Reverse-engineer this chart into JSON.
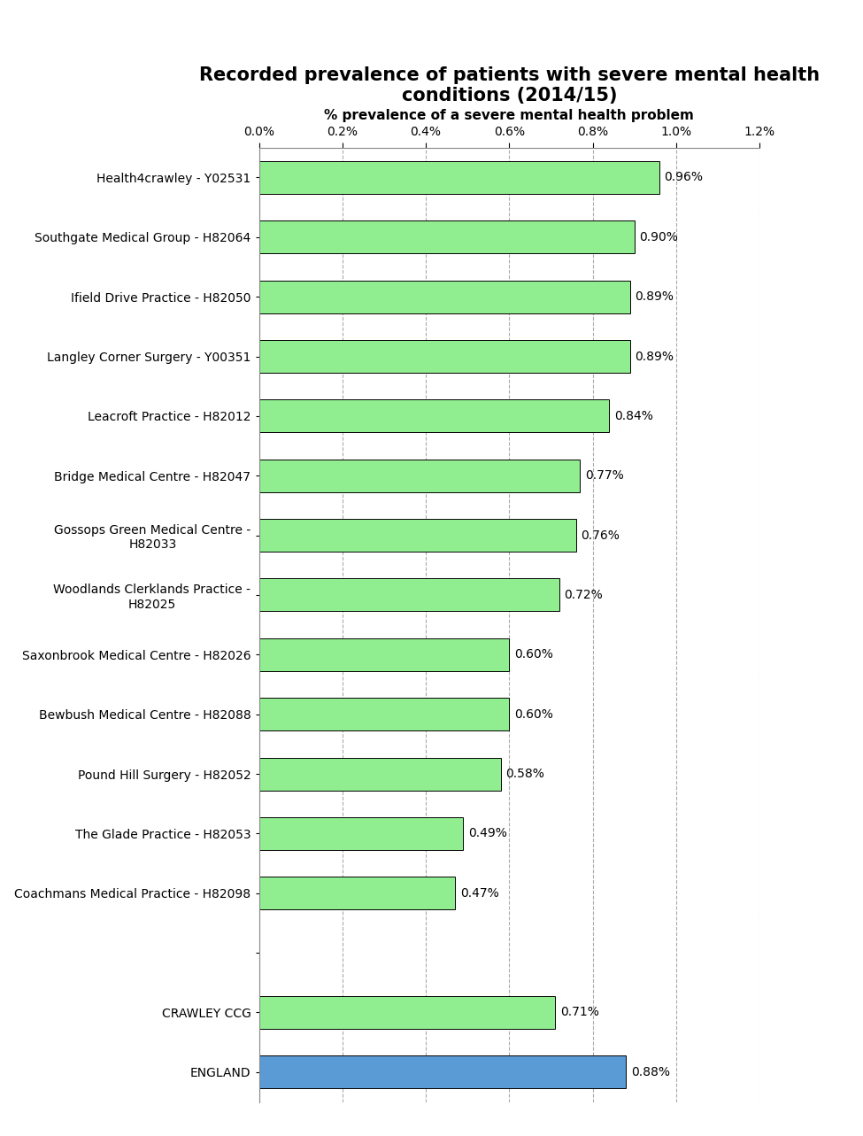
{
  "title": "Recorded prevalence of patients with severe mental health\nconditions (2014/15)",
  "xlabel": "% prevalence of a severe mental health problem",
  "categories": [
    "Health4crawley - Y02531",
    "Southgate Medical Group - H82064",
    "Ifield Drive Practice - H82050",
    "Langley Corner Surgery - Y00351",
    "Leacroft Practice - H82012",
    "Bridge Medical Centre - H82047",
    "Gossops Green Medical Centre -\nH82033",
    "Woodlands Clerklands Practice -\nH82025",
    "Saxonbrook Medical Centre - H82026",
    "Bewbush Medical Centre - H82088",
    "Pound Hill Surgery - H82052",
    "The Glade Practice - H82053",
    "Coachmans Medical Practice - H82098",
    "",
    "CRAWLEY CCG",
    "ENGLAND"
  ],
  "values": [
    0.0096,
    0.009,
    0.0089,
    0.0089,
    0.0084,
    0.0077,
    0.0076,
    0.0072,
    0.006,
    0.006,
    0.0058,
    0.0049,
    0.0047,
    0,
    0.0071,
    0.0088
  ],
  "labels": [
    "0.96%",
    "0.90%",
    "0.89%",
    "0.89%",
    "0.84%",
    "0.77%",
    "0.76%",
    "0.72%",
    "0.60%",
    "0.60%",
    "0.58%",
    "0.49%",
    "0.47%",
    "",
    "0.71%",
    "0.88%"
  ],
  "bar_colors": [
    "#90EE90",
    "#90EE90",
    "#90EE90",
    "#90EE90",
    "#90EE90",
    "#90EE90",
    "#90EE90",
    "#90EE90",
    "#90EE90",
    "#90EE90",
    "#90EE90",
    "#90EE90",
    "#90EE90",
    "#90EE90",
    "#90EE90",
    "#5B9BD5"
  ],
  "xlim": [
    0,
    0.012
  ],
  "xticks": [
    0,
    0.002,
    0.004,
    0.006,
    0.008,
    0.01,
    0.012
  ],
  "xtick_labels": [
    "0.0%",
    "0.2%",
    "0.4%",
    "0.6%",
    "0.8%",
    "1.0%",
    "1.2%"
  ],
  "title_fontsize": 15,
  "label_fontsize": 10,
  "tick_fontsize": 10,
  "bar_edgecolor": "#000000",
  "background_color": "#ffffff",
  "grid_color": "#aaaaaa",
  "bar_height": 0.55
}
